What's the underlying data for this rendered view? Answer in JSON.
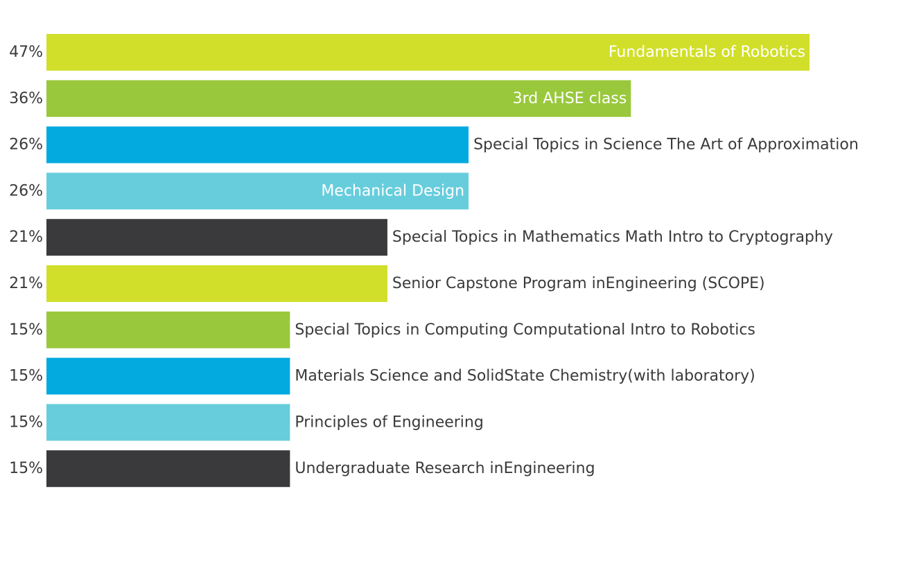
{
  "chart_data": {
    "type": "bar",
    "orientation": "horizontal",
    "grid": false,
    "legend": "none",
    "xlim": [
      0,
      100
    ],
    "categories": [
      "Fundamentals of Robotics",
      "3rd AHSE class",
      "Special Topics in Science The Art of Approximation",
      "Mechanical Design",
      "Special Topics in Mathematics Math Intro to Cryptography",
      "Senior Capstone Program inEngineering (SCOPE)",
      "Special Topics in Computing Computational Intro to Robotics",
      "Materials Science and SolidState Chemistry(with laboratory)",
      "Principles of Engineering",
      "Undergraduate Research inEngineering"
    ],
    "values": [
      47,
      36,
      26,
      26,
      21,
      21,
      15,
      15,
      15,
      15
    ],
    "value_labels": [
      "47%",
      "36%",
      "26%",
      "26%",
      "21%",
      "21%",
      "15%",
      "15%",
      "15%",
      "15%"
    ],
    "label_inside": [
      true,
      true,
      false,
      true,
      false,
      false,
      false,
      false,
      false,
      false
    ],
    "bar_colors": [
      "#d1df2a",
      "#99c83c",
      "#02aae0",
      "#67cddc",
      "#3a3a3c",
      "#d1df2a",
      "#99c83c",
      "#02aae0",
      "#67cddc",
      "#3a3a3c"
    ],
    "inside_label_color": "#ffffff",
    "outside_label_color": "#3a3a3c",
    "value_label_color": "#3a3a3c"
  }
}
